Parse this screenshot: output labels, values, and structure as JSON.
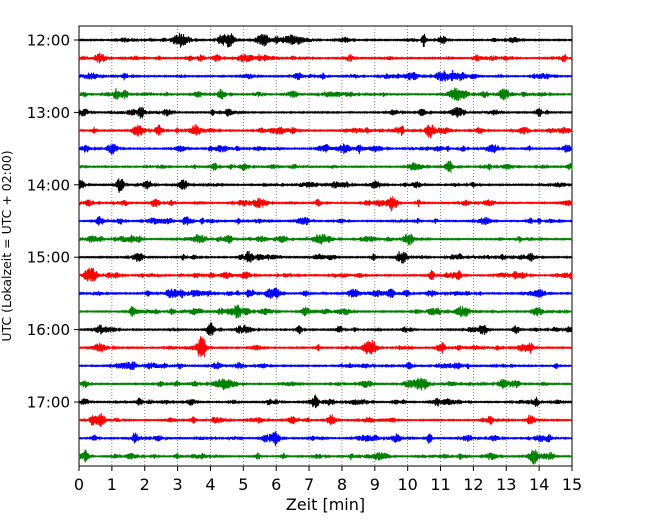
{
  "chart_data": {
    "type": "line",
    "title": "",
    "xlabel": "Zeit  [min]",
    "ylabel": "UTC (Lokalzeit = UTC + 02:00)",
    "xlim": [
      0,
      15
    ],
    "x_ticks": [
      "0",
      "1",
      "2",
      "3",
      "4",
      "5",
      "6",
      "7",
      "8",
      "9",
      "10",
      "11",
      "12",
      "13",
      "14",
      "15"
    ],
    "y_tick_labels": [
      "12:00",
      "13:00",
      "14:00",
      "15:00",
      "16:00",
      "17:00"
    ],
    "row_start_minutes_utc": [
      "12:00",
      "12:15",
      "12:30",
      "12:45",
      "13:00",
      "13:15",
      "13:30",
      "13:45",
      "14:00",
      "14:15",
      "14:30",
      "14:45",
      "15:00",
      "15:15",
      "15:30",
      "15:45",
      "16:00",
      "16:15",
      "16:30",
      "16:45",
      "17:00",
      "17:15",
      "17:30",
      "17:45"
    ],
    "trace_colors": [
      "#000000",
      "#ff0000",
      "#0000ff",
      "#008000"
    ],
    "grid": "vertical dotted",
    "events": [
      {
        "row": 8,
        "x": 1.25,
        "amp": 1.0
      },
      {
        "row": 16,
        "x": 4.0,
        "amp": 0.9
      },
      {
        "row": 17,
        "x": 3.7,
        "amp": 1.0
      },
      {
        "row": 23,
        "x": 0.2,
        "amp": 0.8
      },
      {
        "row": 9,
        "x": 9.6,
        "amp": 0.6
      },
      {
        "row": 14,
        "x": 9.5,
        "amp": 0.6
      },
      {
        "row": 22,
        "x": 6.0,
        "amp": 0.6
      },
      {
        "row": 21,
        "x": 12.5,
        "amp": 0.6
      }
    ]
  }
}
